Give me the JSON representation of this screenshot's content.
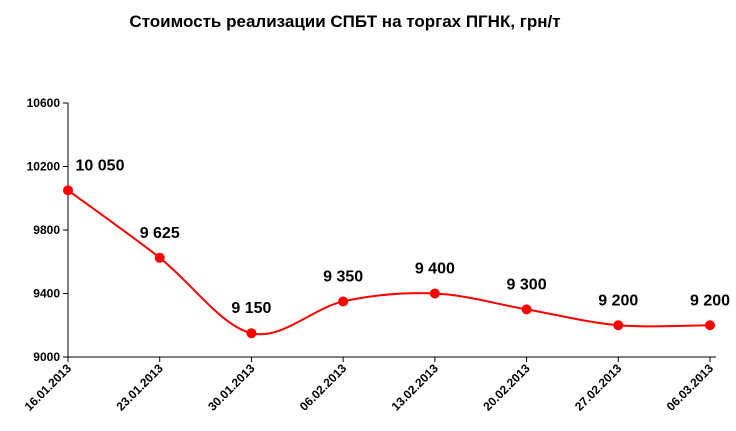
{
  "chart_data": {
    "type": "line",
    "title": "Стоимость реализации СПБТ на торгах ПГНК, грн/т",
    "xlabel": "",
    "ylabel": "",
    "categories": [
      "16.01.2013",
      "23.01.2013",
      "30.01.2013",
      "06.02.2013",
      "13.02.2013",
      "20.02.2013",
      "27.02.2013",
      "06.03.2013"
    ],
    "values": [
      10050,
      9625,
      9150,
      9350,
      9400,
      9300,
      9200,
      9200
    ],
    "data_labels": [
      "10 050",
      "9 625",
      "9 150",
      "9 350",
      "9 400",
      "9 300",
      "9 200",
      "9 200"
    ],
    "ylim": [
      9000,
      10600
    ],
    "yticks": [
      9000,
      9400,
      9800,
      10200,
      10600
    ],
    "ytick_labels": [
      "9000",
      "9400",
      "9800",
      "10200",
      "10600"
    ],
    "grid": false,
    "legend": "none",
    "smooth": true,
    "series_color": "#ff0000",
    "axis_color": "#000000"
  }
}
